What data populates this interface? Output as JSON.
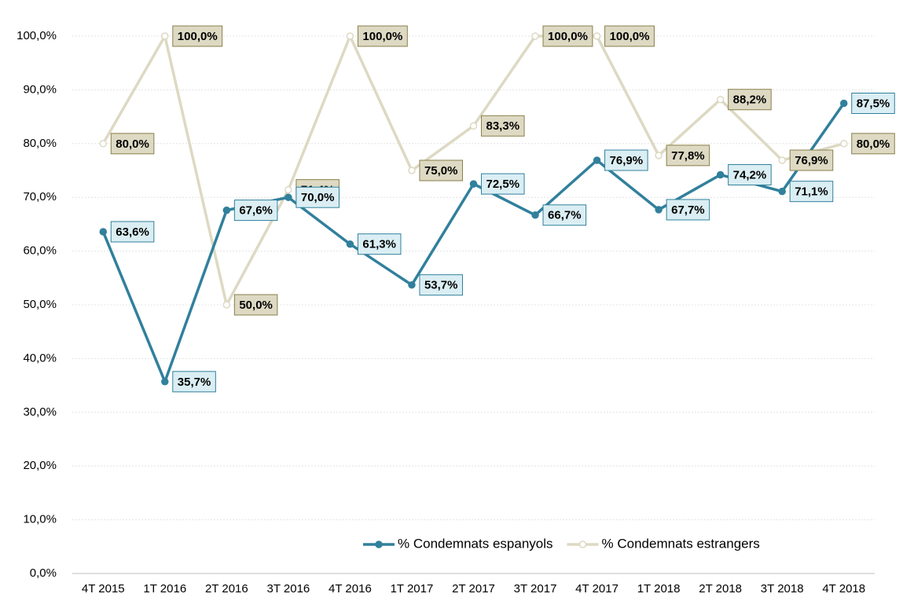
{
  "chart_data": {
    "type": "line",
    "categories": [
      "4T 2015",
      "1T 2016",
      "2T 2016",
      "3T 2016",
      "4T 2016",
      "1T 2017",
      "2T 2017",
      "3T 2017",
      "4T 2017",
      "1T 2018",
      "2T 2018",
      "3T 2018",
      "4T 2018"
    ],
    "series": [
      {
        "name": "% Condemnats espanyols",
        "color": "#31809c",
        "label_fill": "#daeef3",
        "values": [
          63.6,
          35.7,
          67.6,
          70.0,
          61.3,
          53.7,
          72.5,
          66.7,
          76.9,
          67.7,
          74.2,
          71.1,
          87.5
        ],
        "value_labels": [
          "63,6%",
          "35,7%",
          "67,6%",
          "70,0%",
          "61,3%",
          "53,7%",
          "72,5%",
          "66,7%",
          "76,9%",
          "67,7%",
          "74,2%",
          "71,1%",
          "87,5%"
        ]
      },
      {
        "name": "% Condemnats estrangers",
        "color": "#ddd9c3",
        "label_fill": "#ddd9c3",
        "values": [
          80.0,
          100.0,
          50.0,
          71.4,
          100.0,
          75.0,
          83.3,
          100.0,
          100.0,
          77.8,
          88.2,
          76.9,
          80.0
        ],
        "value_labels": [
          "80,0%",
          "100,0%",
          "50,0%",
          "71,4%",
          "100,0%",
          "75,0%",
          "83,3%",
          "100,0%",
          "100,0%",
          "77,8%",
          "88,2%",
          "76,9%",
          "80,0%"
        ]
      }
    ],
    "ylim": [
      0,
      100
    ],
    "yticks": [
      {
        "value": 0,
        "label": "0,0%"
      },
      {
        "value": 10,
        "label": "10,0%"
      },
      {
        "value": 20,
        "label": "20,0%"
      },
      {
        "value": 30,
        "label": "30,0%"
      },
      {
        "value": 40,
        "label": "40,0%"
      },
      {
        "value": 50,
        "label": "50,0%"
      },
      {
        "value": 60,
        "label": "60,0%"
      },
      {
        "value": 70,
        "label": "70,0%"
      },
      {
        "value": 80,
        "label": "80,0%"
      },
      {
        "value": 90,
        "label": "90,0%"
      },
      {
        "value": 100,
        "label": "100,0%"
      }
    ],
    "grid": true,
    "legend": "bottom-right"
  }
}
